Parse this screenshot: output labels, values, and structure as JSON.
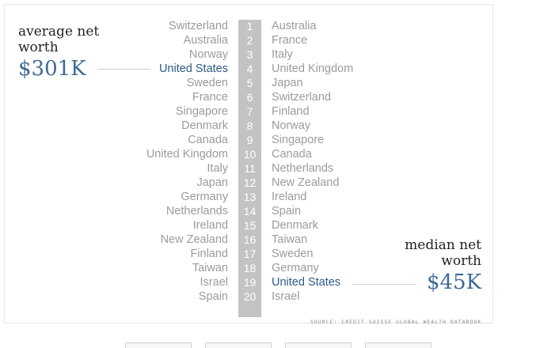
{
  "chart_data": {
    "type": "table",
    "rank_numbers": [
      "1",
      "2",
      "3",
      "4",
      "5",
      "6",
      "7",
      "8",
      "9",
      "10",
      "11",
      "12",
      "13",
      "14",
      "15",
      "16",
      "17",
      "18",
      "19",
      "20"
    ],
    "average_ranking": [
      "Switzerland",
      "Australia",
      "Norway",
      "United States",
      "Sweden",
      "France",
      "Singapore",
      "Denmark",
      "Canada",
      "United Kingdom",
      "Italy",
      "Japan",
      "Germany",
      "Netherlands",
      "Ireland",
      "New Zealand",
      "Finland",
      "Taiwan",
      "Israel",
      "Spain"
    ],
    "median_ranking": [
      "Australia",
      "France",
      "Italy",
      "United Kingdom",
      "Japan",
      "Switzerland",
      "Finland",
      "Norway",
      "Singapore",
      "Canada",
      "Netherlands",
      "New Zealand",
      "Ireland",
      "Spain",
      "Denmark",
      "Taiwan",
      "Sweden",
      "Germany",
      "United States",
      "Israel"
    ],
    "highlight": "United States",
    "average_label": "average net worth",
    "average_value": "$301K",
    "median_label": "median net worth",
    "median_value": "$45K",
    "source": "SOURCE: CREDIT SUISSE GLOBAL WEALTH DATABOOK",
    "colors": {
      "highlight": "#2d5a87",
      "value": "#3f6b94",
      "country": "#9b9b9b",
      "rank_bar": "#c3c3c3"
    }
  }
}
